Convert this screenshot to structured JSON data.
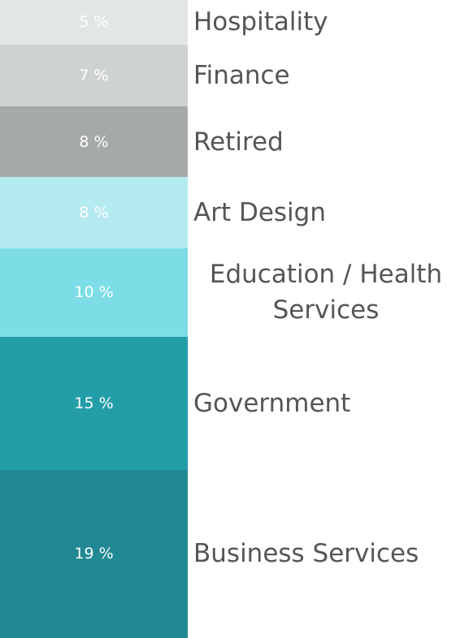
{
  "chart_data": {
    "type": "stacked-column",
    "categories": [
      "Hospitality",
      "Finance",
      "Retired",
      "Art Design",
      "Education / Health Services",
      "Government",
      "Business Services"
    ],
    "values": [
      5,
      7,
      8,
      8,
      10,
      15,
      19
    ],
    "value_labels": [
      "5 %",
      "7 %",
      "8 %",
      "8 %",
      "10 %",
      "15 %",
      "19 %"
    ],
    "colors": [
      "#e3e6e7",
      "#cfd2d3",
      "#a5a9aa",
      "#b5eaf0",
      "#7ddde6",
      "#239ea9",
      "#208992"
    ]
  }
}
